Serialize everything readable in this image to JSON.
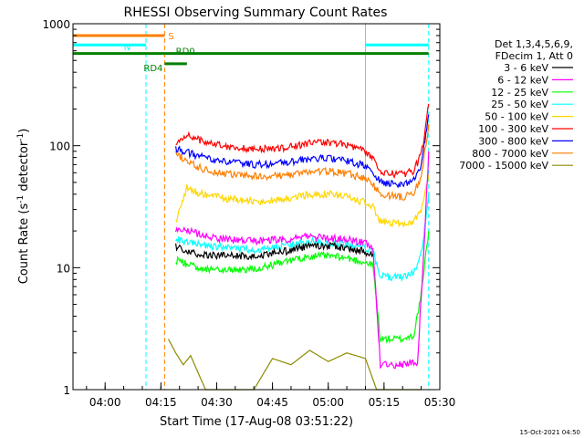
{
  "chart_data": {
    "type": "line",
    "title": "RHESSI Observing Summary Count Rates",
    "xlabel": "Start Time (17-Aug-08 03:51:22)",
    "ylabel_parts": [
      "Count Rate (s",
      "-1",
      " detector",
      "-1",
      ")"
    ],
    "yscale": "log",
    "ylim": [
      1,
      1000
    ],
    "xlim": [
      "03:51:22",
      "05:30:00"
    ],
    "x_ticks": [
      "04:00",
      "04:15",
      "04:30",
      "04:45",
      "05:00",
      "05:15",
      "05:30"
    ],
    "y_ticks": [
      "1",
      "10",
      "100",
      "1000"
    ],
    "grid": false,
    "legend_position": "right",
    "legend_header": [
      "Det 1,3,4,5,6,9,",
      "FDecim 1, Att 0"
    ],
    "timestamp": "15-Oct-2021 04:50",
    "flags": [
      {
        "label": "S",
        "color": "#ff7f00",
        "start": "03:51:22",
        "end": "04:16:00",
        "level": 800
      },
      {
        "label": "N",
        "color": "#00ffff",
        "start": "03:51:22",
        "end": "04:11:00",
        "level": 670
      },
      {
        "label": "N",
        "color": "#00ffff",
        "start": "05:10:00",
        "end": "05:27:00",
        "level": 670
      },
      {
        "label": "RD0",
        "color": "#008000",
        "start": "03:51:22",
        "end": "05:27:00",
        "level": 570
      },
      {
        "label": "RD4",
        "color": "#008000",
        "start": "04:16:00",
        "end": "04:22:00",
        "level": 470
      }
    ],
    "vlines": [
      {
        "time": "04:11:00",
        "color": "#00ffff",
        "style": "dashed"
      },
      {
        "time": "04:16:00",
        "color": "#ff7f00",
        "style": "dashed"
      },
      {
        "time": "05:10:00",
        "color": "#00ffff",
        "style": "solid"
      },
      {
        "time": "05:27:00",
        "color": "#00ffff",
        "style": "dashed"
      }
    ],
    "series": [
      {
        "name": "3 - 6 keV",
        "color": "#000000",
        "x": [
          "04:19",
          "04:25",
          "04:32",
          "04:40",
          "04:48",
          "04:55",
          "05:00",
          "05:05",
          "05:10",
          "05:12"
        ],
        "y": [
          15,
          13,
          12.5,
          12.5,
          13.5,
          15,
          15,
          14.5,
          13.5,
          13
        ]
      },
      {
        "name": "6 - 12 keV",
        "color": "#ff00ff",
        "x": [
          "04:19",
          "04:25",
          "04:32",
          "04:40",
          "04:48",
          "04:55",
          "05:00",
          "05:05",
          "05:10",
          "05:12",
          "05:14",
          "05:20",
          "05:24",
          "05:26",
          "05:27"
        ],
        "y": [
          21,
          19,
          17,
          16.5,
          17,
          18,
          17.5,
          17,
          16,
          15,
          1.6,
          1.6,
          1.7,
          20,
          90
        ]
      },
      {
        "name": "12 - 25 keV",
        "color": "#00ff00",
        "x": [
          "04:19",
          "04:25",
          "04:32",
          "04:40",
          "04:48",
          "04:55",
          "05:00",
          "05:05",
          "05:10",
          "05:12",
          "05:14",
          "05:20",
          "05:23",
          "05:25",
          "05:26",
          "05:27"
        ],
        "y": [
          11.5,
          10,
          9.5,
          9.8,
          11,
          12.5,
          12.5,
          12,
          11,
          10.5,
          2.6,
          2.6,
          2.8,
          6,
          11,
          20
        ]
      },
      {
        "name": "25 - 50 keV",
        "color": "#00ffff",
        "x": [
          "04:19",
          "04:25",
          "04:32",
          "04:40",
          "04:48",
          "04:55",
          "05:00",
          "05:05",
          "05:10",
          "05:12",
          "05:14",
          "05:20",
          "05:23",
          "05:25",
          "05:26",
          "05:27"
        ],
        "y": [
          17,
          15.5,
          14.5,
          14,
          15,
          16.5,
          16,
          15.5,
          14.5,
          13.5,
          8.5,
          8.3,
          9,
          13,
          22,
          40
        ]
      },
      {
        "name": "50 - 100 keV",
        "color": "#ffd700",
        "x": [
          "04:19",
          "04:22",
          "04:25",
          "04:32",
          "04:40",
          "04:48",
          "04:55",
          "05:00",
          "05:05",
          "05:10",
          "05:12",
          "05:14",
          "05:20",
          "05:23",
          "05:25",
          "05:26",
          "05:27"
        ],
        "y": [
          24,
          45,
          41,
          37,
          35,
          36,
          40,
          40,
          38,
          34,
          31,
          24,
          23,
          24,
          30,
          40,
          58
        ]
      },
      {
        "name": "100 - 300 keV",
        "color": "#ff0000",
        "x": [
          "04:19",
          "04:22",
          "04:25",
          "04:32",
          "04:40",
          "04:48",
          "04:55",
          "05:00",
          "05:05",
          "05:10",
          "05:12",
          "05:14",
          "05:20",
          "05:23",
          "05:25",
          "05:26",
          "05:27"
        ],
        "y": [
          100,
          125,
          112,
          100,
          93,
          96,
          105,
          107,
          102,
          90,
          78,
          60,
          58,
          62,
          85,
          130,
          220
        ]
      },
      {
        "name": "300 - 800 keV",
        "color": "#0000ff",
        "x": [
          "04:19",
          "04:25",
          "04:32",
          "04:40",
          "04:48",
          "04:55",
          "05:00",
          "05:05",
          "05:10",
          "05:12",
          "05:14",
          "05:20",
          "05:23",
          "05:25",
          "05:26",
          "05:27"
        ],
        "y": [
          95,
          82,
          74,
          70,
          72,
          78,
          79,
          75,
          68,
          60,
          50,
          48,
          52,
          70,
          110,
          180
        ]
      },
      {
        "name": "800 - 7000 keV",
        "color": "#ff7f00",
        "x": [
          "04:19",
          "04:25",
          "04:32",
          "04:40",
          "04:48",
          "04:55",
          "05:00",
          "05:05",
          "05:10",
          "05:12",
          "05:14",
          "05:20",
          "05:23",
          "05:25",
          "05:26",
          "05:27"
        ],
        "y": [
          85,
          66,
          59,
          56,
          57,
          61,
          62,
          59,
          54,
          48,
          40,
          38,
          41,
          55,
          90,
          150
        ]
      },
      {
        "name": "7000 - 15000 keV",
        "color": "#8b8b00",
        "x": [
          "04:17",
          "04:19",
          "04:21",
          "04:23",
          "04:27",
          "04:40",
          "04:45",
          "04:50",
          "04:55",
          "05:00",
          "05:05",
          "05:10",
          "05:13",
          "05:17",
          "05:22",
          "05:25"
        ],
        "y": [
          2.6,
          2,
          1.6,
          1.9,
          1,
          1,
          1.8,
          1.6,
          2.1,
          1.7,
          2,
          1.8,
          1,
          1,
          1,
          1
        ]
      }
    ]
  }
}
